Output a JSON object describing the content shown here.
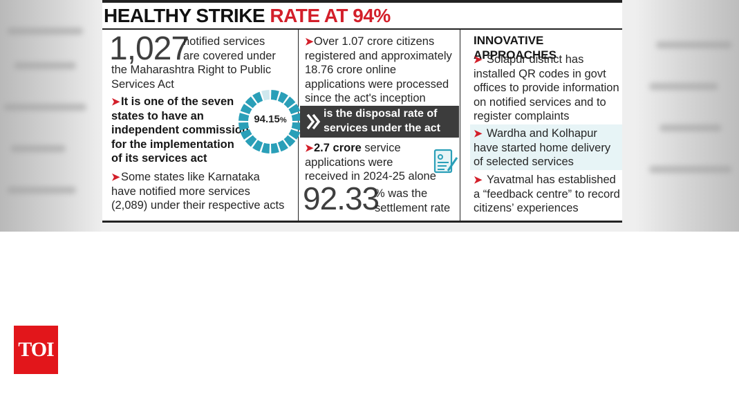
{
  "infographic": {
    "headline": {
      "part1": "HEALTHY STRIKE ",
      "part2": "RATE AT 94%"
    },
    "col1": {
      "big_number": "1,027",
      "intro_line1": "notified services",
      "intro_line2": "are covered under",
      "intro_line3": "the Maharashtra Right to Public",
      "intro_line4": "Services Act",
      "bullet1": [
        "It is one of the seven",
        "states to have an",
        "independent commission",
        "for the implementation",
        "of its services act"
      ],
      "bullet2": [
        "Some states like Karnataka",
        "have notified more services",
        "(2,089) under their respective acts"
      ],
      "donut_value": 94.15,
      "donut_label": "94.15",
      "donut_unit": "%"
    },
    "col2": {
      "bullet1": [
        "Over 1.07 crore citizens",
        "registered and approximately",
        "18.76 crore online",
        "applications were processed",
        "since the act's inception"
      ],
      "banner": [
        "is the disposal rate of",
        "services under the act"
      ],
      "bullet2_bold": "2.7 crore",
      "bullet2": [
        " service",
        "applications were",
        "received in 2024-25 alone"
      ],
      "big_number": "92.33",
      "settlement_line1": "% was the",
      "settlement_line2": "settlement rate"
    },
    "col3": {
      "title": "INNOVATIVE APPROACHES",
      "bullet1": [
        "Solapur district has",
        "installed QR codes in govt",
        "offices to provide information",
        "on notified services and to",
        "register complaints"
      ],
      "bullet2": [
        "Wardha and Kolhapur",
        "have started home delivery",
        "of selected services"
      ],
      "bullet3": [
        "Yavatmal has established",
        "a “feedback centre” to record",
        "citizens’ experiences"
      ]
    },
    "arrow_glyph": "➤",
    "icons": [
      "double-chevron-icon",
      "document-pen-icon"
    ],
    "colors": {
      "accent": "#d31f2a",
      "teal": "#2a9fb8",
      "banner": "#3c3c3c"
    }
  },
  "logo": {
    "text": "TOI",
    "color": "#e2161b"
  }
}
